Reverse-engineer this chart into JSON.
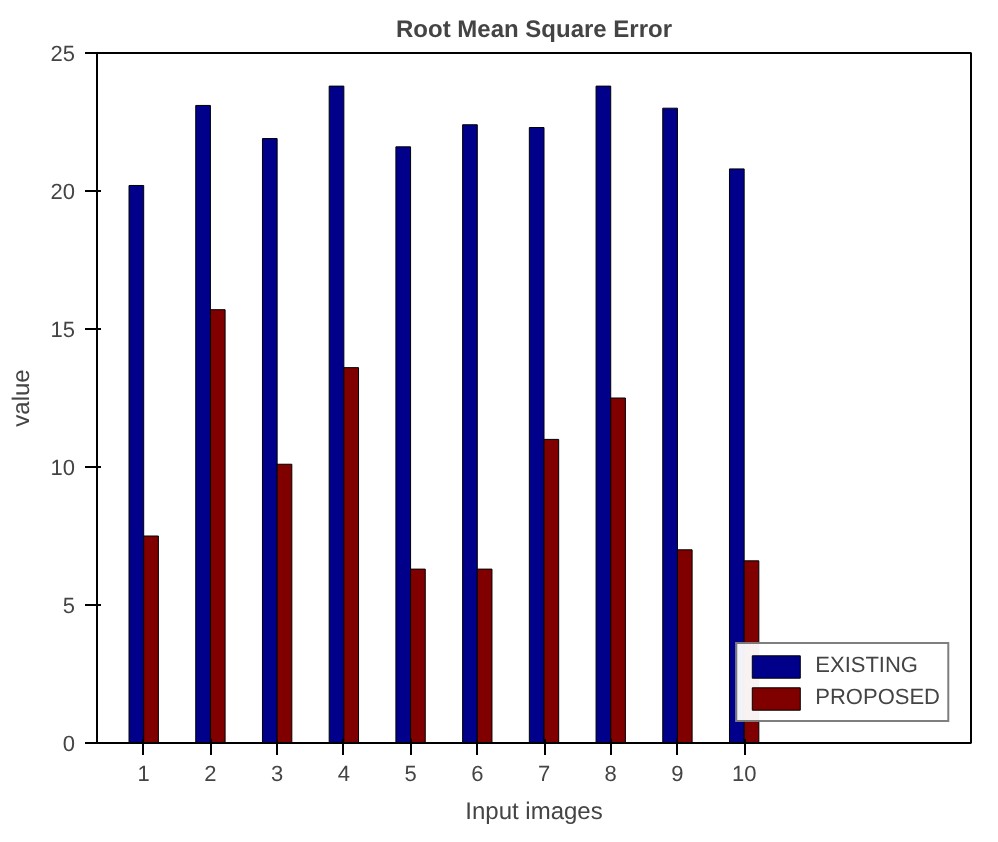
{
  "chart_data": {
    "type": "bar",
    "title": "Root Mean Square Error",
    "xlabel": "Input images",
    "ylabel": "value",
    "categories": [
      "1",
      "2",
      "3",
      "4",
      "5",
      "6",
      "7",
      "8",
      "9",
      "10"
    ],
    "series": [
      {
        "name": "EXISTING",
        "color": "#00008b",
        "values": [
          20.2,
          23.1,
          21.9,
          23.8,
          21.6,
          22.4,
          22.3,
          23.8,
          23.0,
          20.8
        ]
      },
      {
        "name": "PROPOSED",
        "color": "#800000",
        "values": [
          7.5,
          15.7,
          10.1,
          13.6,
          6.3,
          6.3,
          11.0,
          12.5,
          7.0,
          6.6
        ]
      }
    ],
    "ylim": [
      0,
      25
    ],
    "yticks": [
      0,
      5,
      10,
      15,
      20,
      25
    ],
    "grid": false,
    "legend": "right"
  }
}
